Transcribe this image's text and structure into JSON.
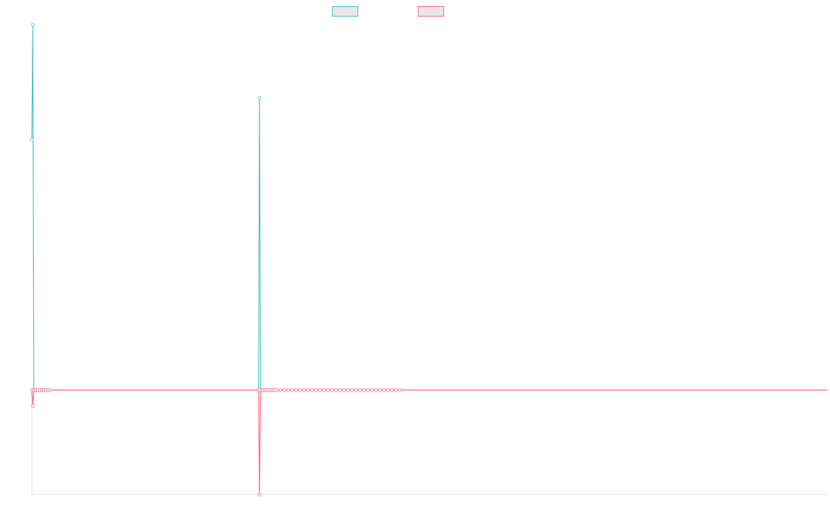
{
  "colors": {
    "series_1": "#4bc0c0",
    "series_2": "#ff6384",
    "zero_line": "#8a8aa5",
    "axis": "#e0e0e0",
    "legend_fill": "#e6e6e6"
  },
  "chart_data": {
    "type": "line",
    "title": "",
    "xlabel": "",
    "ylabel": "",
    "grid": false,
    "legend_position": "top",
    "y_axis_labels_shown": false,
    "x_axis_labels_shown": false,
    "xlim": [
      0,
      800
    ],
    "ylim": [
      -100,
      350
    ],
    "series": [
      {
        "color": "#4bc0c0",
        "points": [
          [
            0,
            240
          ],
          [
            1,
            350
          ],
          [
            2,
            0
          ],
          [
            4,
            0
          ],
          [
            6,
            0
          ],
          [
            8,
            0
          ],
          [
            10,
            0
          ],
          [
            12,
            0
          ],
          [
            14,
            0
          ],
          [
            16,
            0
          ],
          [
            18,
            0
          ],
          [
            228,
            0
          ],
          [
            229,
            280
          ],
          [
            230,
            0
          ],
          [
            232,
            0
          ],
          [
            234,
            0
          ],
          [
            236,
            0
          ],
          [
            238,
            0
          ],
          [
            240,
            0
          ],
          [
            242,
            0
          ],
          [
            244,
            0
          ],
          [
            246,
            0
          ],
          [
            250,
            0
          ],
          [
            254,
            0
          ],
          [
            258,
            0
          ],
          [
            262,
            0
          ],
          [
            266,
            0
          ],
          [
            270,
            0
          ],
          [
            274,
            0
          ],
          [
            278,
            0
          ],
          [
            282,
            0
          ],
          [
            286,
            0
          ],
          [
            290,
            0
          ],
          [
            294,
            0
          ],
          [
            298,
            0
          ],
          [
            302,
            0
          ],
          [
            306,
            0
          ],
          [
            310,
            0
          ],
          [
            314,
            0
          ],
          [
            318,
            0
          ],
          [
            322,
            0
          ],
          [
            326,
            0
          ],
          [
            330,
            0
          ],
          [
            334,
            0
          ],
          [
            338,
            0
          ],
          [
            342,
            0
          ],
          [
            346,
            0
          ],
          [
            350,
            0
          ],
          [
            354,
            0
          ],
          [
            358,
            0
          ],
          [
            362,
            0
          ],
          [
            366,
            0
          ],
          [
            370,
            0
          ],
          [
            800,
            0
          ]
        ]
      },
      {
        "color": "#ff6384",
        "points": [
          [
            0,
            0
          ],
          [
            1,
            -15
          ],
          [
            2,
            0
          ],
          [
            4,
            0
          ],
          [
            6,
            0
          ],
          [
            8,
            0
          ],
          [
            10,
            0
          ],
          [
            12,
            0
          ],
          [
            14,
            0
          ],
          [
            16,
            0
          ],
          [
            18,
            0
          ],
          [
            228,
            0
          ],
          [
            229,
            -100
          ],
          [
            230,
            0
          ],
          [
            232,
            0
          ],
          [
            234,
            0
          ],
          [
            236,
            0
          ],
          [
            238,
            0
          ],
          [
            240,
            0
          ],
          [
            242,
            0
          ],
          [
            244,
            0
          ],
          [
            246,
            0
          ],
          [
            250,
            0
          ],
          [
            254,
            0
          ],
          [
            258,
            0
          ],
          [
            262,
            0
          ],
          [
            266,
            0
          ],
          [
            270,
            0
          ],
          [
            274,
            0
          ],
          [
            278,
            0
          ],
          [
            282,
            0
          ],
          [
            286,
            0
          ],
          [
            290,
            0
          ],
          [
            294,
            0
          ],
          [
            298,
            0
          ],
          [
            302,
            0
          ],
          [
            306,
            0
          ],
          [
            310,
            0
          ],
          [
            314,
            0
          ],
          [
            318,
            0
          ],
          [
            322,
            0
          ],
          [
            326,
            0
          ],
          [
            330,
            0
          ],
          [
            334,
            0
          ],
          [
            338,
            0
          ],
          [
            342,
            0
          ],
          [
            346,
            0
          ],
          [
            350,
            0
          ],
          [
            354,
            0
          ],
          [
            358,
            0
          ],
          [
            362,
            0
          ],
          [
            366,
            0
          ],
          [
            370,
            0
          ],
          [
            800,
            0
          ]
        ]
      }
    ]
  }
}
